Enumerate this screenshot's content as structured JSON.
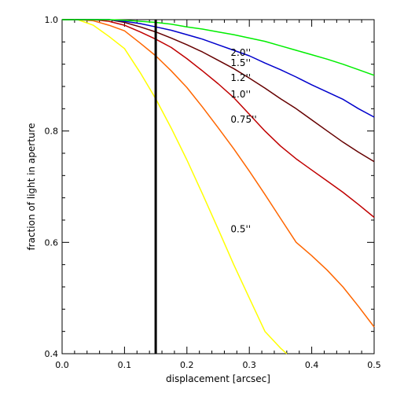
{
  "chart_data": {
    "type": "line",
    "xlabel": "displacement [arcsec]",
    "ylabel": "fraction of light in aperture",
    "xlim": [
      0.0,
      0.5
    ],
    "ylim": [
      0.4,
      1.0
    ],
    "xticks": [
      0.0,
      0.1,
      0.2,
      0.3,
      0.4,
      0.5
    ],
    "xtick_labels": [
      "0.0",
      "0.1",
      "0.2",
      "0.3",
      "0.4",
      "0.5"
    ],
    "yticks": [
      0.4,
      0.6,
      0.8,
      1.0
    ],
    "ytick_labels": [
      "0.4",
      "0.6",
      "0.8",
      "1.0"
    ],
    "grid": false,
    "legend": "none",
    "vertical_line": {
      "x": 0.15,
      "color": "#000000"
    },
    "series": [
      {
        "name": "0.5''",
        "color": "#ffff00",
        "label_at": [
          0.27,
          0.618
        ],
        "x": [
          0.0,
          0.025,
          0.05,
          0.075,
          0.1,
          0.125,
          0.15,
          0.175,
          0.2,
          0.225,
          0.25,
          0.275,
          0.3,
          0.325,
          0.35,
          0.36
        ],
        "y": [
          1.0,
          1.0,
          0.99,
          0.97,
          0.948,
          0.905,
          0.858,
          0.805,
          0.748,
          0.687,
          0.624,
          0.56,
          0.5,
          0.44,
          0.41,
          0.395
        ]
      },
      {
        "name": "0.75''",
        "color": "#ff6600",
        "label_at": [
          0.27,
          0.815
        ],
        "x": [
          0.0,
          0.025,
          0.05,
          0.075,
          0.1,
          0.125,
          0.15,
          0.175,
          0.2,
          0.225,
          0.25,
          0.275,
          0.3,
          0.325,
          0.35,
          0.375,
          0.4,
          0.425,
          0.45,
          0.475,
          0.5
        ],
        "y": [
          1.0,
          1.0,
          0.998,
          0.99,
          0.98,
          0.958,
          0.935,
          0.908,
          0.878,
          0.843,
          0.806,
          0.768,
          0.728,
          0.686,
          0.643,
          0.6,
          0.576,
          0.55,
          0.52,
          0.485,
          0.448
        ]
      },
      {
        "name": "1.0''",
        "color": "#c00000",
        "label_at": [
          0.27,
          0.86
        ],
        "x": [
          0.0,
          0.025,
          0.05,
          0.075,
          0.1,
          0.125,
          0.15,
          0.175,
          0.2,
          0.225,
          0.25,
          0.275,
          0.3,
          0.325,
          0.35,
          0.375,
          0.4,
          0.425,
          0.45,
          0.475,
          0.5
        ],
        "y": [
          1.0,
          1.0,
          1.0,
          0.997,
          0.99,
          0.978,
          0.965,
          0.95,
          0.93,
          0.908,
          0.885,
          0.86,
          0.83,
          0.8,
          0.773,
          0.75,
          0.73,
          0.71,
          0.69,
          0.668,
          0.645
        ]
      },
      {
        "name": "1.2''",
        "color": "#660000",
        "label_at": [
          0.27,
          0.89
        ],
        "x": [
          0.0,
          0.025,
          0.05,
          0.075,
          0.1,
          0.125,
          0.15,
          0.175,
          0.2,
          0.225,
          0.25,
          0.275,
          0.3,
          0.325,
          0.35,
          0.375,
          0.4,
          0.425,
          0.45,
          0.475,
          0.5
        ],
        "y": [
          1.0,
          1.0,
          1.0,
          1.0,
          0.995,
          0.987,
          0.978,
          0.967,
          0.955,
          0.942,
          0.927,
          0.912,
          0.895,
          0.877,
          0.858,
          0.84,
          0.82,
          0.8,
          0.78,
          0.762,
          0.745
        ]
      },
      {
        "name": "1.5''",
        "color": "#0000cc",
        "label_at": [
          0.27,
          0.917
        ],
        "x": [
          0.0,
          0.025,
          0.05,
          0.075,
          0.1,
          0.125,
          0.15,
          0.175,
          0.2,
          0.225,
          0.25,
          0.275,
          0.3,
          0.325,
          0.35,
          0.375,
          0.4,
          0.425,
          0.45,
          0.475,
          0.5
        ],
        "y": [
          1.0,
          1.0,
          1.0,
          1.0,
          0.997,
          0.993,
          0.987,
          0.981,
          0.973,
          0.965,
          0.955,
          0.945,
          0.935,
          0.922,
          0.91,
          0.897,
          0.883,
          0.87,
          0.857,
          0.84,
          0.825
        ]
      },
      {
        "name": "2.0''",
        "color": "#00ee00",
        "label_at": [
          0.27,
          0.935
        ],
        "x": [
          0.0,
          0.025,
          0.05,
          0.075,
          0.1,
          0.125,
          0.15,
          0.175,
          0.2,
          0.225,
          0.25,
          0.275,
          0.3,
          0.325,
          0.35,
          0.375,
          0.4,
          0.425,
          0.45,
          0.475,
          0.5
        ],
        "y": [
          1.0,
          1.0,
          1.0,
          1.0,
          0.999,
          0.997,
          0.995,
          0.992,
          0.987,
          0.983,
          0.978,
          0.973,
          0.967,
          0.961,
          0.953,
          0.945,
          0.937,
          0.929,
          0.92,
          0.91,
          0.9
        ]
      }
    ]
  }
}
